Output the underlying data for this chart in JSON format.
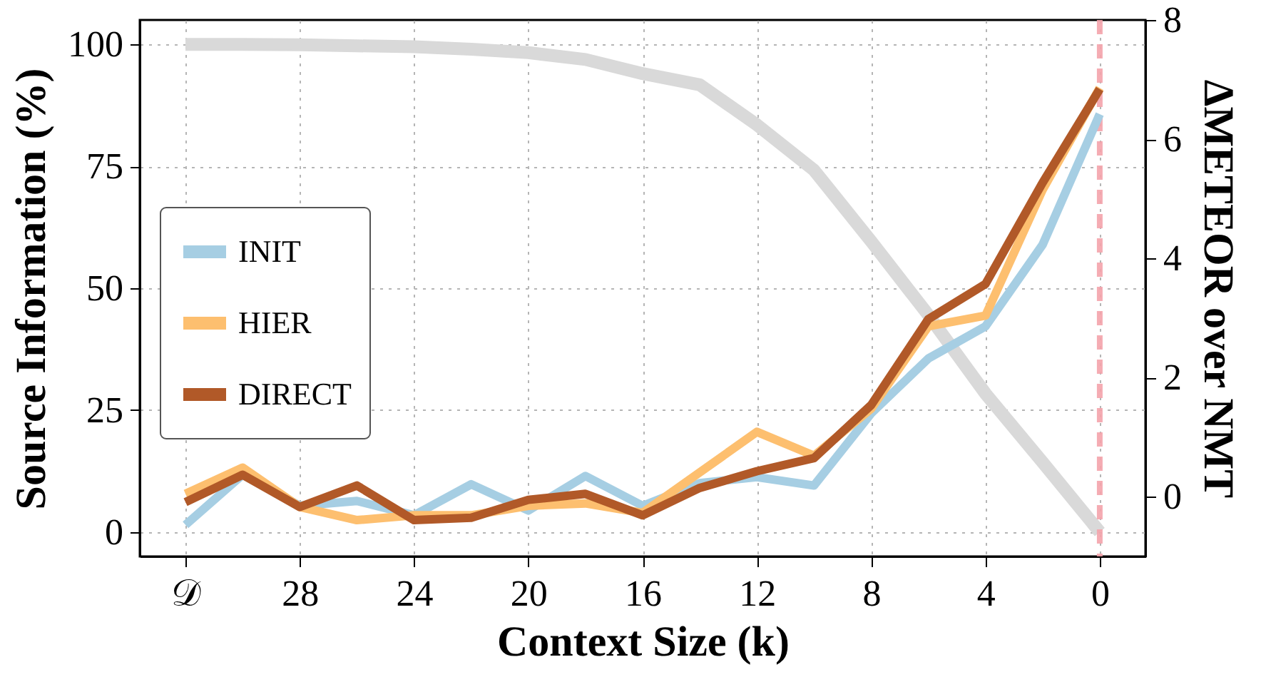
{
  "chart_data": {
    "type": "line",
    "xlabel": "Context Size (k)",
    "ylabel": "Source Information (%)",
    "y2label": "ΔMETEOR over NMT",
    "x": [
      32,
      30,
      28,
      26,
      24,
      22,
      20,
      18,
      16,
      14,
      12,
      10,
      8,
      6,
      4,
      2,
      0
    ],
    "series": [
      {
        "color": "#d9d9d9",
        "axis": "y",
        "values": [
          100,
          100,
          99.9,
          99.7,
          99.5,
          99,
          98.3,
          96.9,
          94,
          91.7,
          83.5,
          74.2,
          59.6,
          44.5,
          28.4,
          14.3,
          0
        ]
      },
      {
        "name": "INIT",
        "color": "#a6cee3",
        "axis": "y2",
        "values": [
          -0.47,
          0.37,
          -0.15,
          -0.07,
          -0.31,
          0.21,
          -0.23,
          0.35,
          -0.15,
          0.23,
          0.33,
          0.19,
          1.4,
          2.32,
          2.86,
          4.23,
          6.42
        ]
      },
      {
        "name": "HIER",
        "color": "#fdbf6f",
        "axis": "y2",
        "values": [
          0.05,
          0.49,
          -0.17,
          -0.39,
          -0.31,
          -0.31,
          -0.15,
          -0.11,
          -0.27,
          0.41,
          1.09,
          0.69,
          1.48,
          2.86,
          3.04,
          5.15,
          6.86
        ]
      },
      {
        "name": "DIRECT",
        "color": "#b15928",
        "axis": "y2",
        "values": [
          -0.09,
          0.37,
          -0.17,
          0.19,
          -0.39,
          -0.35,
          -0.05,
          0.05,
          -0.31,
          0.15,
          0.43,
          0.65,
          1.54,
          2.98,
          3.57,
          5.27,
          6.84
        ]
      }
    ],
    "xlim": [
      33.6,
      -1.6
    ],
    "xticks": [
      {
        "value": 32,
        "label": "𝒟"
      },
      28,
      24,
      20,
      16,
      12,
      8,
      4,
      0
    ],
    "ylim": [
      -5,
      105
    ],
    "yticks": [
      0,
      25,
      50,
      75,
      100
    ],
    "y2lim": [
      -1,
      8
    ],
    "y2ticks": [
      0,
      2,
      4,
      6,
      8
    ],
    "ref_lines": [
      {
        "axis": "x",
        "value": 0,
        "color": "#f4a3ab",
        "line_style": "dashed"
      }
    ],
    "grid": true,
    "legend": "left"
  }
}
